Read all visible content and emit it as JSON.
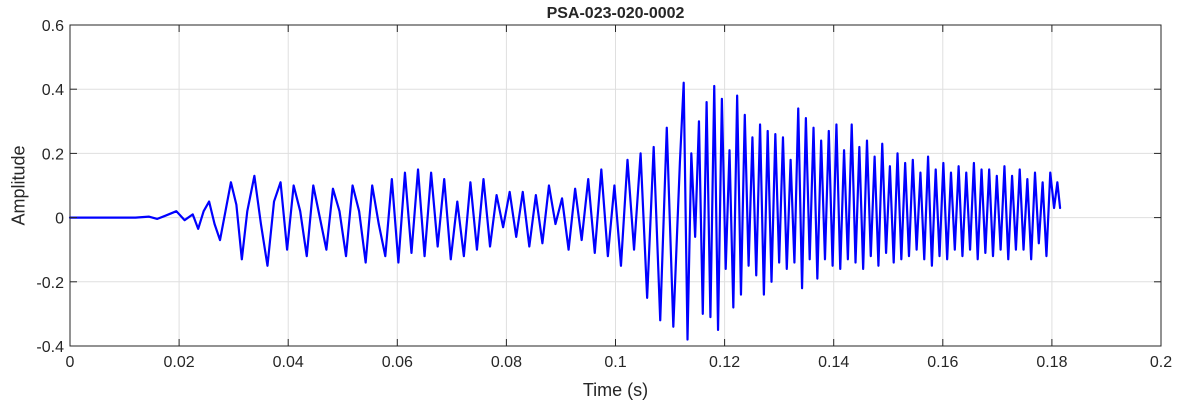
{
  "chart_data": {
    "type": "line",
    "title": "PSA-023-020-0002",
    "xlabel": "Time (s)",
    "ylabel": "Amplitude",
    "xlim": [
      0,
      0.2
    ],
    "ylim": [
      -0.4,
      0.6
    ],
    "grid": true,
    "x_ticks": [
      0,
      0.02,
      0.04,
      0.06,
      0.08,
      0.1,
      0.12,
      0.14,
      0.16,
      0.18,
      0.2
    ],
    "x_tick_labels": [
      "0",
      "0.02",
      "0.04",
      "0.06",
      "0.08",
      "0.1",
      "0.12",
      "0.14",
      "0.16",
      "0.18",
      "0.2"
    ],
    "y_ticks": [
      -0.4,
      -0.2,
      0,
      0.2,
      0.4,
      0.6
    ],
    "y_tick_labels": [
      "-0.4",
      "-0.2",
      "0",
      "0.2",
      "0.4",
      "0.6"
    ],
    "series": [
      {
        "color": "#0000ff",
        "x": [
          0,
          0.012,
          0.0145,
          0.016,
          0.0175,
          0.0195,
          0.021,
          0.0225,
          0.0235,
          0.0245,
          0.0255,
          0.0265,
          0.0275,
          0.0285,
          0.0295,
          0.0305,
          0.0315,
          0.0325,
          0.0338,
          0.035,
          0.0362,
          0.0374,
          0.0386,
          0.0398,
          0.041,
          0.0422,
          0.0434,
          0.0446,
          0.0458,
          0.047,
          0.0482,
          0.0494,
          0.0506,
          0.0518,
          0.053,
          0.0542,
          0.0554,
          0.0566,
          0.0578,
          0.059,
          0.0602,
          0.0614,
          0.0626,
          0.0638,
          0.065,
          0.0662,
          0.0674,
          0.0686,
          0.0698,
          0.071,
          0.0722,
          0.0734,
          0.0746,
          0.0758,
          0.077,
          0.0782,
          0.0794,
          0.0806,
          0.0818,
          0.083,
          0.0842,
          0.0854,
          0.0866,
          0.0878,
          0.089,
          0.0902,
          0.0914,
          0.0926,
          0.0938,
          0.095,
          0.0962,
          0.0974,
          0.0986,
          0.0998,
          0.101,
          0.1022,
          0.1034,
          0.1046,
          0.1058,
          0.107,
          0.1082,
          0.1094,
          0.1106,
          0.1118,
          0.1125,
          0.1132,
          0.1139,
          0.1146,
          0.1153,
          0.116,
          0.1167,
          0.1174,
          0.1181,
          0.1188,
          0.1195,
          0.1202,
          0.1209,
          0.1216,
          0.1223,
          0.123,
          0.1237,
          0.1244,
          0.1251,
          0.1258,
          0.1265,
          0.1272,
          0.1279,
          0.1286,
          0.1293,
          0.13,
          0.1307,
          0.1314,
          0.1321,
          0.1328,
          0.1335,
          0.1342,
          0.1349,
          0.1356,
          0.1363,
          0.137,
          0.1377,
          0.1384,
          0.1391,
          0.1398,
          0.1405,
          0.1412,
          0.1419,
          0.1426,
          0.1433,
          0.144,
          0.1447,
          0.1454,
          0.1461,
          0.1468,
          0.1475,
          0.1482,
          0.1489,
          0.1496,
          0.1503,
          0.151,
          0.1517,
          0.1524,
          0.1531,
          0.1538,
          0.1545,
          0.1552,
          0.1559,
          0.1566,
          0.1573,
          0.158,
          0.1587,
          0.1594,
          0.1601,
          0.1608,
          0.1615,
          0.1622,
          0.1629,
          0.1636,
          0.1643,
          0.165,
          0.1657,
          0.1664,
          0.1671,
          0.1678,
          0.1685,
          0.1692,
          0.1699,
          0.1706,
          0.1713,
          0.172,
          0.1727,
          0.1734,
          0.1741,
          0.1748,
          0.1755,
          0.1762,
          0.1769,
          0.1776,
          0.1783,
          0.179,
          0.1797,
          0.1804,
          0.181,
          0.1815
        ],
        "y": [
          0,
          0,
          0.003,
          -0.004,
          0.006,
          0.02,
          -0.008,
          0.01,
          -0.035,
          0.02,
          0.05,
          -0.02,
          -0.07,
          0.02,
          0.11,
          0.04,
          -0.13,
          0.02,
          0.13,
          -0.02,
          -0.15,
          0.05,
          0.11,
          -0.1,
          0.1,
          0.02,
          -0.12,
          0.1,
          0.0,
          -0.1,
          0.09,
          0.02,
          -0.12,
          0.1,
          0.02,
          -0.14,
          0.1,
          -0.02,
          -0.12,
          0.12,
          -0.14,
          0.14,
          -0.11,
          0.15,
          -0.12,
          0.14,
          -0.09,
          0.12,
          -0.13,
          0.05,
          -0.12,
          0.11,
          -0.1,
          0.12,
          -0.09,
          0.07,
          -0.03,
          0.08,
          -0.06,
          0.08,
          -0.09,
          0.07,
          -0.08,
          0.1,
          -0.02,
          0.06,
          -0.1,
          0.09,
          -0.07,
          0.12,
          -0.11,
          0.15,
          -0.12,
          0.1,
          -0.15,
          0.18,
          -0.1,
          0.2,
          -0.25,
          0.22,
          -0.32,
          0.28,
          -0.34,
          0.17,
          0.42,
          -0.38,
          0.2,
          -0.06,
          0.3,
          -0.3,
          0.36,
          -0.31,
          0.41,
          -0.35,
          0.37,
          -0.16,
          0.21,
          -0.28,
          0.38,
          -0.24,
          0.32,
          -0.15,
          0.25,
          -0.18,
          0.29,
          -0.24,
          0.27,
          -0.2,
          0.26,
          -0.14,
          0.25,
          -0.16,
          0.18,
          -0.14,
          0.34,
          -0.22,
          0.31,
          -0.13,
          0.28,
          -0.19,
          0.24,
          -0.13,
          0.27,
          -0.15,
          0.29,
          -0.16,
          0.21,
          -0.13,
          0.29,
          -0.14,
          0.22,
          -0.16,
          0.24,
          -0.12,
          0.19,
          -0.15,
          0.23,
          -0.11,
          0.16,
          -0.14,
          0.2,
          -0.13,
          0.17,
          -0.12,
          0.18,
          -0.1,
          0.14,
          -0.13,
          0.19,
          -0.15,
          0.15,
          -0.12,
          0.17,
          -0.13,
          0.14,
          -0.1,
          0.16,
          -0.12,
          0.14,
          -0.1,
          0.17,
          -0.13,
          0.15,
          -0.11,
          0.15,
          -0.12,
          0.13,
          -0.1,
          0.16,
          -0.13,
          0.13,
          -0.1,
          0.15,
          -0.1,
          0.12,
          -0.13,
          0.14,
          -0.08,
          0.11,
          -0.12,
          0.14,
          0.03,
          0.11,
          0.03
        ]
      }
    ]
  }
}
